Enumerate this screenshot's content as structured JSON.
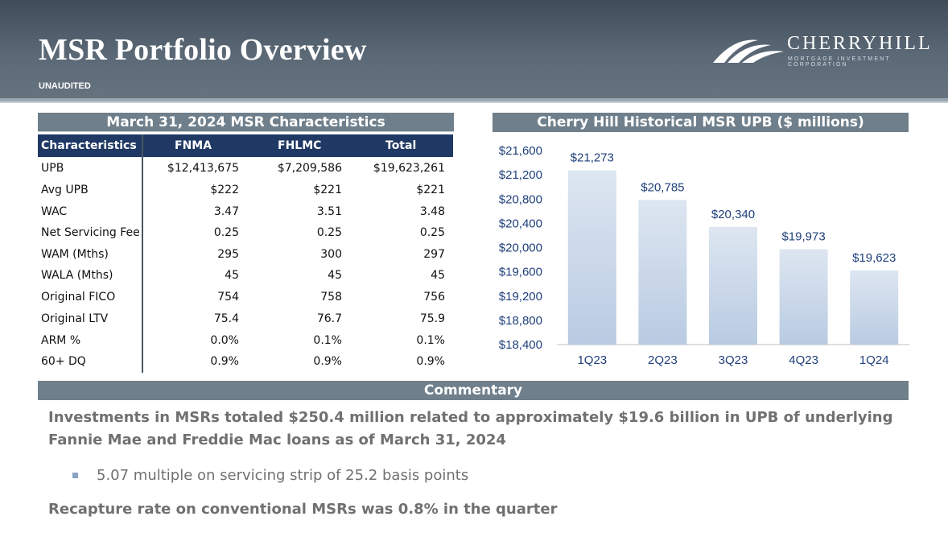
{
  "header": {
    "title": "MSR Portfolio Overview",
    "subtitle": "UNAUDITED",
    "logo_name": "CHERRYHILL",
    "logo_sub": "MORTGAGE INVESTMENT CORPORATION",
    "logo_icon": "mountain-arches-icon"
  },
  "table": {
    "title": "March 31, 2024 MSR Characteristics",
    "columns": [
      "Characteristics",
      "FNMA",
      "FHLMC",
      "Total"
    ],
    "rows": [
      [
        "UPB",
        "$12,413,675",
        "$7,209,586",
        "$19,623,261"
      ],
      [
        "Avg UPB",
        "$222",
        "$221",
        "$221"
      ],
      [
        "WAC",
        "3.47",
        "3.51",
        "3.48"
      ],
      [
        "Net Servicing Fee",
        "0.25",
        "0.25",
        "0.25"
      ],
      [
        "WAM (Mths)",
        "295",
        "300",
        "297"
      ],
      [
        "WALA (Mths)",
        "45",
        "45",
        "45"
      ],
      [
        "Original FICO",
        "754",
        "758",
        "756"
      ],
      [
        "Original LTV",
        "75.4",
        "76.7",
        "75.9"
      ],
      [
        "ARM %",
        "0.0%",
        "0.1%",
        "0.1%"
      ],
      [
        "60+ DQ",
        "0.9%",
        "0.9%",
        "0.9%"
      ]
    ]
  },
  "chart_data": {
    "type": "bar",
    "title": "Cherry Hill Historical MSR UPB ($ millions)",
    "categories": [
      "1Q23",
      "2Q23",
      "3Q23",
      "4Q23",
      "1Q24"
    ],
    "values": [
      21273,
      20785,
      20340,
      19973,
      19623
    ],
    "value_labels": [
      "$21,273",
      "$20,785",
      "$20,340",
      "$19,973",
      "$19,623"
    ],
    "y_ticks": [
      "$18,400",
      "$18,800",
      "$19,200",
      "$19,600",
      "$20,000",
      "$20,400",
      "$20,800",
      "$21,200",
      "$21,600"
    ],
    "ylim": [
      18400,
      21600
    ],
    "grid": false,
    "bar_color_top": "#dde6f1",
    "bar_color_bottom": "#b9cbe2",
    "label_color": "#1f3f7a"
  },
  "commentary": {
    "title": "Commentary",
    "point1": "Investments in MSRs totaled $250.4 million related to approximately $19.6 billion in UPB of underlying Fannie Mae and Freddie Mac loans as of March 31, 2024",
    "bullet1": "5.07 multiple on servicing strip of 25.2 basis points",
    "point2": "Recapture rate on conventional MSRs was 0.8% in the quarter"
  }
}
